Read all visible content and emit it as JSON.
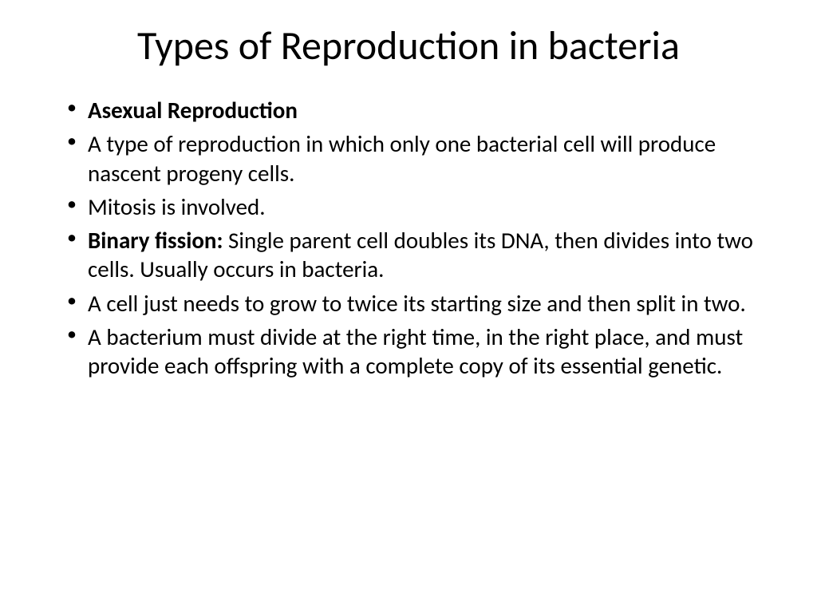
{
  "slide": {
    "title": "Types of Reproduction in bacteria",
    "title_fontsize": 50,
    "body_fontsize": 29,
    "background_color": "#ffffff",
    "text_color": "#000000",
    "bullets": [
      {
        "bold_prefix": "Asexual Reproduction",
        "rest": ""
      },
      {
        "bold_prefix": "",
        "rest": "A type of reproduction in which only one bacterial cell will produce nascent progeny cells."
      },
      {
        "bold_prefix": "",
        "rest": "Mitosis is involved."
      },
      {
        "bold_prefix": "Binary fission: ",
        "rest": "Single parent cell doubles its DNA, then divides into two cells. Usually occurs in bacteria."
      },
      {
        "bold_prefix": "",
        "rest": " A cell just needs to grow to twice its starting size and then split in two."
      },
      {
        "bold_prefix": "",
        "rest": "A bacterium must divide at the right time, in the right place, and must provide each offspring with a complete copy of its essential genetic."
      }
    ]
  }
}
